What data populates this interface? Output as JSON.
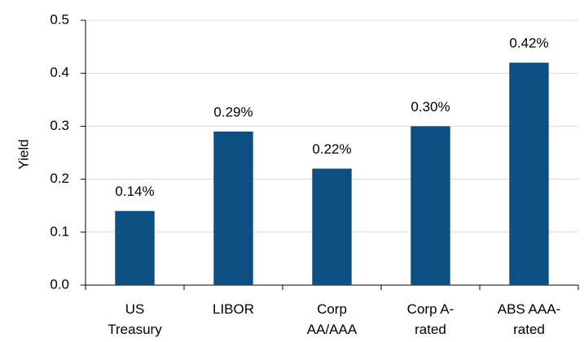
{
  "chart_data": {
    "type": "bar",
    "y_label": "Yield",
    "categories": [
      [
        "US",
        "Treasury"
      ],
      [
        "LIBOR"
      ],
      [
        "Corp",
        "AA/AAA"
      ],
      [
        "Corp A-",
        "rated"
      ],
      [
        "ABS AAA-",
        "rated"
      ]
    ],
    "values": [
      0.14,
      0.29,
      0.22,
      0.3,
      0.42
    ],
    "value_labels": [
      "0.14%",
      "0.29%",
      "0.22%",
      "0.30%",
      "0.42%"
    ],
    "color": "#0d4f80",
    "ylim": [
      0,
      0.5
    ],
    "yticks": [
      {
        "value": 0,
        "label": "0.0"
      },
      0.1,
      0.2,
      0.3,
      0.4,
      0.5
    ],
    "grid": true
  }
}
